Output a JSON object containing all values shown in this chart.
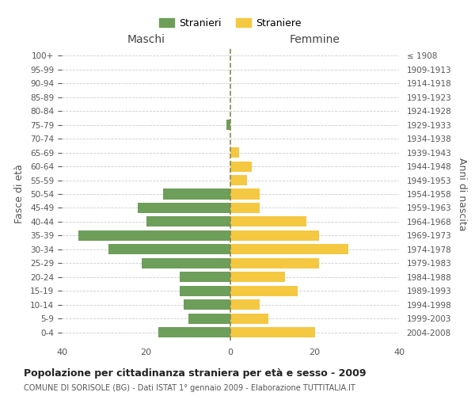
{
  "age_groups": [
    "0-4",
    "5-9",
    "10-14",
    "15-19",
    "20-24",
    "25-29",
    "30-34",
    "35-39",
    "40-44",
    "45-49",
    "50-54",
    "55-59",
    "60-64",
    "65-69",
    "70-74",
    "75-79",
    "80-84",
    "85-89",
    "90-94",
    "95-99",
    "100+"
  ],
  "birth_years": [
    "2004-2008",
    "1999-2003",
    "1994-1998",
    "1989-1993",
    "1984-1988",
    "1979-1983",
    "1974-1978",
    "1969-1973",
    "1964-1968",
    "1959-1963",
    "1954-1958",
    "1949-1953",
    "1944-1948",
    "1939-1943",
    "1934-1938",
    "1929-1933",
    "1924-1928",
    "1919-1923",
    "1914-1918",
    "1909-1913",
    "≤ 1908"
  ],
  "males": [
    17,
    10,
    11,
    12,
    12,
    21,
    29,
    36,
    20,
    22,
    16,
    0,
    0,
    0,
    0,
    1,
    0,
    0,
    0,
    0,
    0
  ],
  "females": [
    20,
    9,
    7,
    16,
    13,
    21,
    28,
    21,
    18,
    7,
    7,
    4,
    5,
    2,
    0,
    0,
    0,
    0,
    0,
    0,
    0
  ],
  "male_color": "#6d9e5a",
  "female_color": "#f5c842",
  "male_label": "Stranieri",
  "female_label": "Straniere",
  "title": "Popolazione per cittadinanza straniera per età e sesso - 2009",
  "subtitle": "COMUNE DI SORISOLE (BG) - Dati ISTAT 1° gennaio 2009 - Elaborazione TUTTITALIA.IT",
  "left_header": "Maschi",
  "right_header": "Femmine",
  "left_ylabel": "Fasce di età",
  "right_ylabel": "Anni di nascita",
  "xlim": 40,
  "background_color": "#ffffff",
  "grid_color": "#cccccc",
  "dashed_line_color": "#888855"
}
